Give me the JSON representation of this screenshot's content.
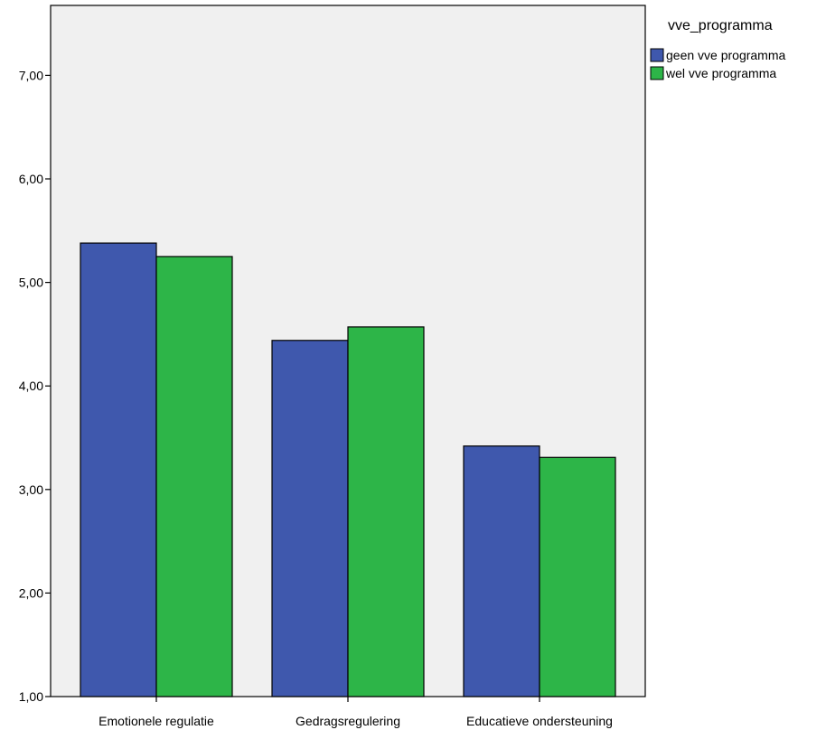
{
  "chart_data": {
    "type": "bar",
    "categories": [
      "Emotionele regulatie",
      "Gedragsregulering",
      "Educatieve ondersteuning"
    ],
    "series": [
      {
        "name": "geen vve programma",
        "color": "#3f58ad",
        "values": [
          5.38,
          4.44,
          3.42
        ]
      },
      {
        "name": "wel vve programma",
        "color": "#2db548",
        "values": [
          5.25,
          4.57,
          3.31
        ]
      }
    ],
    "ylim": [
      1,
      7.6
    ],
    "yticks": [
      "1,00",
      "2,00",
      "3,00",
      "4,00",
      "5,00",
      "6,00",
      "7,00"
    ],
    "legend_title": "vve_programma",
    "legend_position": "right",
    "plot_background": "#f0f0f0",
    "grid": false
  }
}
